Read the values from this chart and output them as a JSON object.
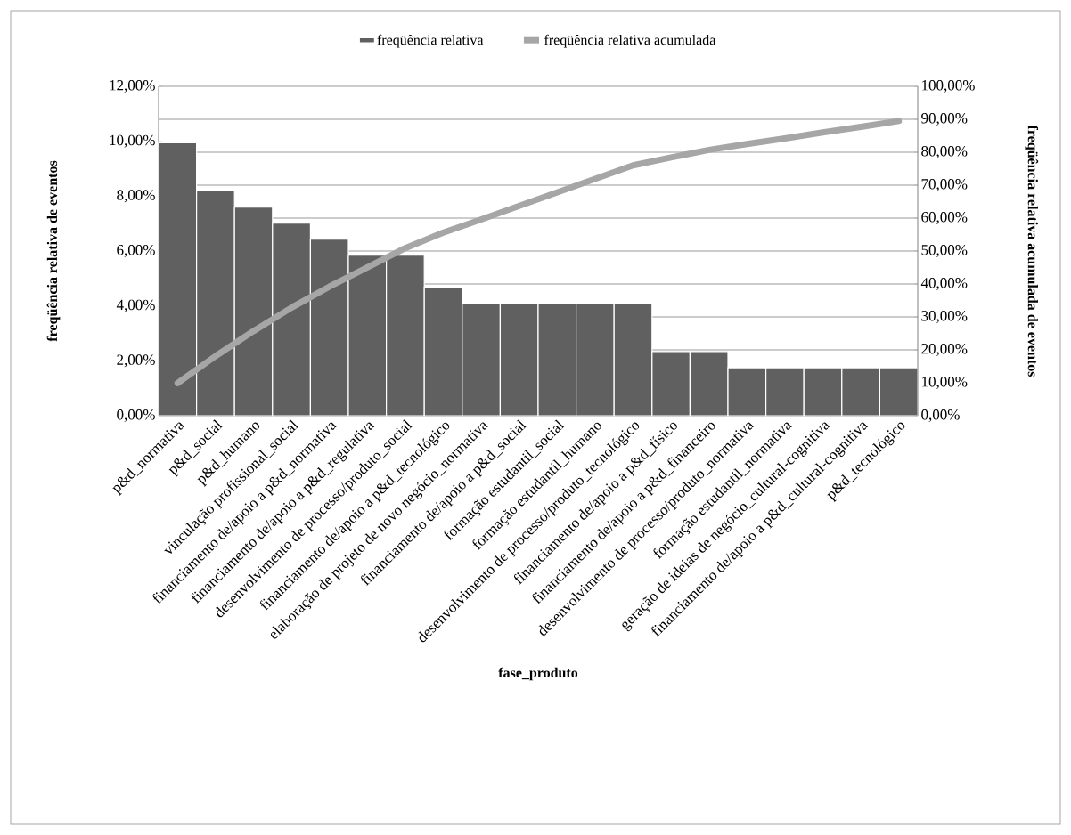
{
  "chart_data": {
    "type": "bar",
    "xlabel": "fase_produto",
    "ylabel": "freqüência relativa de eventos",
    "y2label": "freqüência relativa acumulada de eventos",
    "categories": [
      "p&d_normativa",
      "p&d_social",
      "p&d_humano",
      "vinculação profissional_social",
      "financiamento de/apoio a p&d_normativa",
      "financiamento de/apoio a p&d_regulativa",
      "desenvolvimento de processo/produto_social",
      "financiamento de/apoio a p&d_tecnológico",
      "elaboração de projeto de novo negócio_normativa",
      "financiamento de/apoio a p&d_social",
      "formação estudantil_social",
      "formação estudantil_humano",
      "desenvolvimento de processo/produto_tecnológico",
      "financiamento de/apoio a p&d_físico",
      "financiamento de/apoio a p&d_financeiro",
      "desenvolvimento de processo/produto_normativa",
      "formação estudantil_normativa",
      "geração de ideias de negócio_cultural-cognitiva",
      "financiamento de/apoio a p&d_cultural-cognitiva",
      "p&d_tecnológico"
    ],
    "series": [
      {
        "name": "freqüência relativa",
        "color": "#606060",
        "values": [
          9.94,
          8.19,
          7.6,
          7.02,
          6.43,
          5.85,
          5.85,
          4.68,
          4.09,
          4.09,
          4.09,
          4.09,
          4.09,
          2.34,
          2.34,
          1.75,
          1.75,
          1.75,
          1.75,
          1.75
        ]
      },
      {
        "name": "freqüência relativa acumulada",
        "type": "line",
        "axis": "y2",
        "color": "#a6a6a6",
        "values": [
          9.9,
          18.1,
          25.7,
          32.8,
          39.2,
          45.0,
          50.9,
          55.6,
          59.6,
          63.7,
          67.8,
          71.9,
          76.0,
          78.4,
          80.7,
          82.5,
          84.2,
          86.0,
          87.7,
          89.5
        ]
      }
    ],
    "ylim": [
      0,
      12
    ],
    "yticks": [
      {
        "value": 0,
        "label": "0,00%"
      },
      {
        "value": 2,
        "label": "2,00%"
      },
      {
        "value": 4,
        "label": "4,00%"
      },
      {
        "value": 6,
        "label": "6,00%"
      },
      {
        "value": 8,
        "label": "8,00%"
      },
      {
        "value": 10,
        "label": "10,00%"
      },
      {
        "value": 12,
        "label": "12,00%"
      }
    ],
    "y2lim": [
      0,
      100
    ],
    "y2ticks": [
      {
        "value": 0,
        "label": "0,00%"
      },
      {
        "value": 10,
        "label": "10,00%"
      },
      {
        "value": 20,
        "label": "20,00%"
      },
      {
        "value": 30,
        "label": "30,00%"
      },
      {
        "value": 40,
        "label": "40,00%"
      },
      {
        "value": 50,
        "label": "50,00%"
      },
      {
        "value": 60,
        "label": "60,00%"
      },
      {
        "value": 70,
        "label": "70,00%"
      },
      {
        "value": 80,
        "label": "80,00%"
      },
      {
        "value": 90,
        "label": "90,00%"
      },
      {
        "value": 100,
        "label": "100,00%"
      }
    ],
    "grid": "y2",
    "legend": "top"
  }
}
